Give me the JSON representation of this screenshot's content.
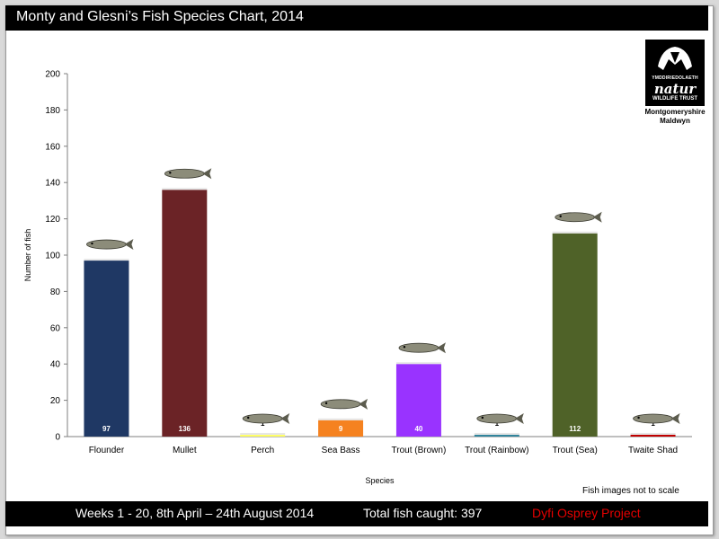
{
  "header": {
    "title": "Monty and Glesni’s Fish Species Chart, 2014"
  },
  "logo": {
    "line1": "YMDDIRIEDOLAETH",
    "line2": "natur",
    "line3": "WILDLIFE TRUST",
    "sub1": "Montgomeryshire",
    "sub2": "Maldwyn"
  },
  "note": "Fish images not to scale",
  "footer": {
    "weeks": "Weeks 1 - 20,  8th April – 24th August 2014",
    "total": "Total fish caught:  397",
    "project": "Dyfi Osprey Project"
  },
  "chart_data": {
    "type": "bar",
    "title": "Monty and Glesni’s Fish Species Chart, 2014",
    "xlabel": "Species",
    "ylabel": "Number of fish",
    "ylim": [
      0,
      200
    ],
    "yticks": [
      0,
      20,
      40,
      60,
      80,
      100,
      120,
      140,
      160,
      180,
      200
    ],
    "categories": [
      "Flounder",
      "Mullet",
      "Perch",
      "Sea Bass",
      "Trout (Brown)",
      "Trout (Rainbow)",
      "Trout (Sea)",
      "Twaite Shad"
    ],
    "values": [
      97,
      136,
      1,
      9,
      40,
      1,
      112,
      1
    ],
    "colors": [
      "#1f3864",
      "#6b2326",
      "#ffff66",
      "#f58220",
      "#9933ff",
      "#31859c",
      "#4f6228",
      "#c00000"
    ],
    "grid": false,
    "legend": "none"
  }
}
